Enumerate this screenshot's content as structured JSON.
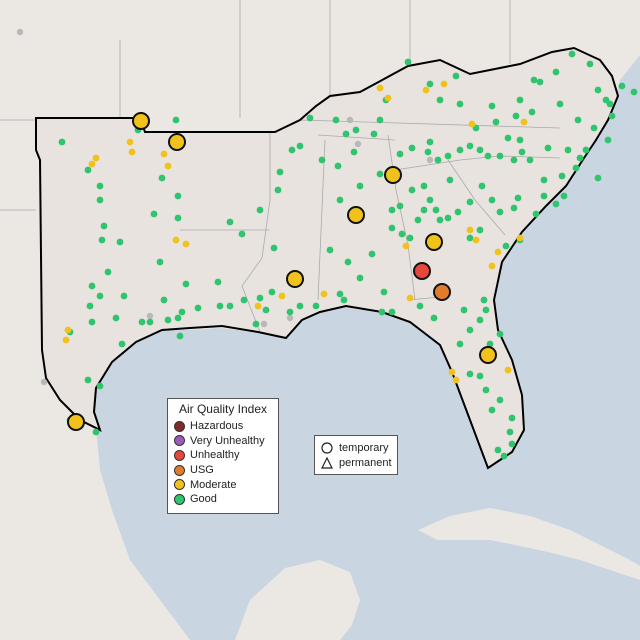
{
  "legend": {
    "title": "Air Quality Index",
    "categories": [
      {
        "label": "Hazardous",
        "color": "#7e2b2b"
      },
      {
        "label": "Very Unhealthy",
        "color": "#9a5bbd"
      },
      {
        "label": "Unhealthy",
        "color": "#e8473c"
      },
      {
        "label": "USG",
        "color": "#e07d2c"
      },
      {
        "label": "Moderate",
        "color": "#f1c21b"
      },
      {
        "label": "Good",
        "color": "#2fc46e"
      }
    ],
    "shapes": [
      {
        "label": "temporary",
        "icon": "circle-outline-icon"
      },
      {
        "label": "permanent",
        "icon": "triangle-outline-icon"
      }
    ]
  },
  "colors": {
    "ocean": "#c9d6e2",
    "land": "#e8e3de",
    "out_land": "#ebe8e4",
    "region_border": "#000000",
    "state_border": "#aaaaaa"
  },
  "large_markers": [
    {
      "aqi": "Moderate"
    },
    {
      "aqi": "Moderate"
    },
    {
      "aqi": "Moderate"
    },
    {
      "aqi": "Moderate"
    },
    {
      "aqi": "Moderate"
    },
    {
      "aqi": "Moderate"
    },
    {
      "aqi": "Moderate"
    },
    {
      "aqi": "Moderate"
    },
    {
      "aqi": "Unhealthy"
    },
    {
      "aqi": "USG"
    }
  ]
}
